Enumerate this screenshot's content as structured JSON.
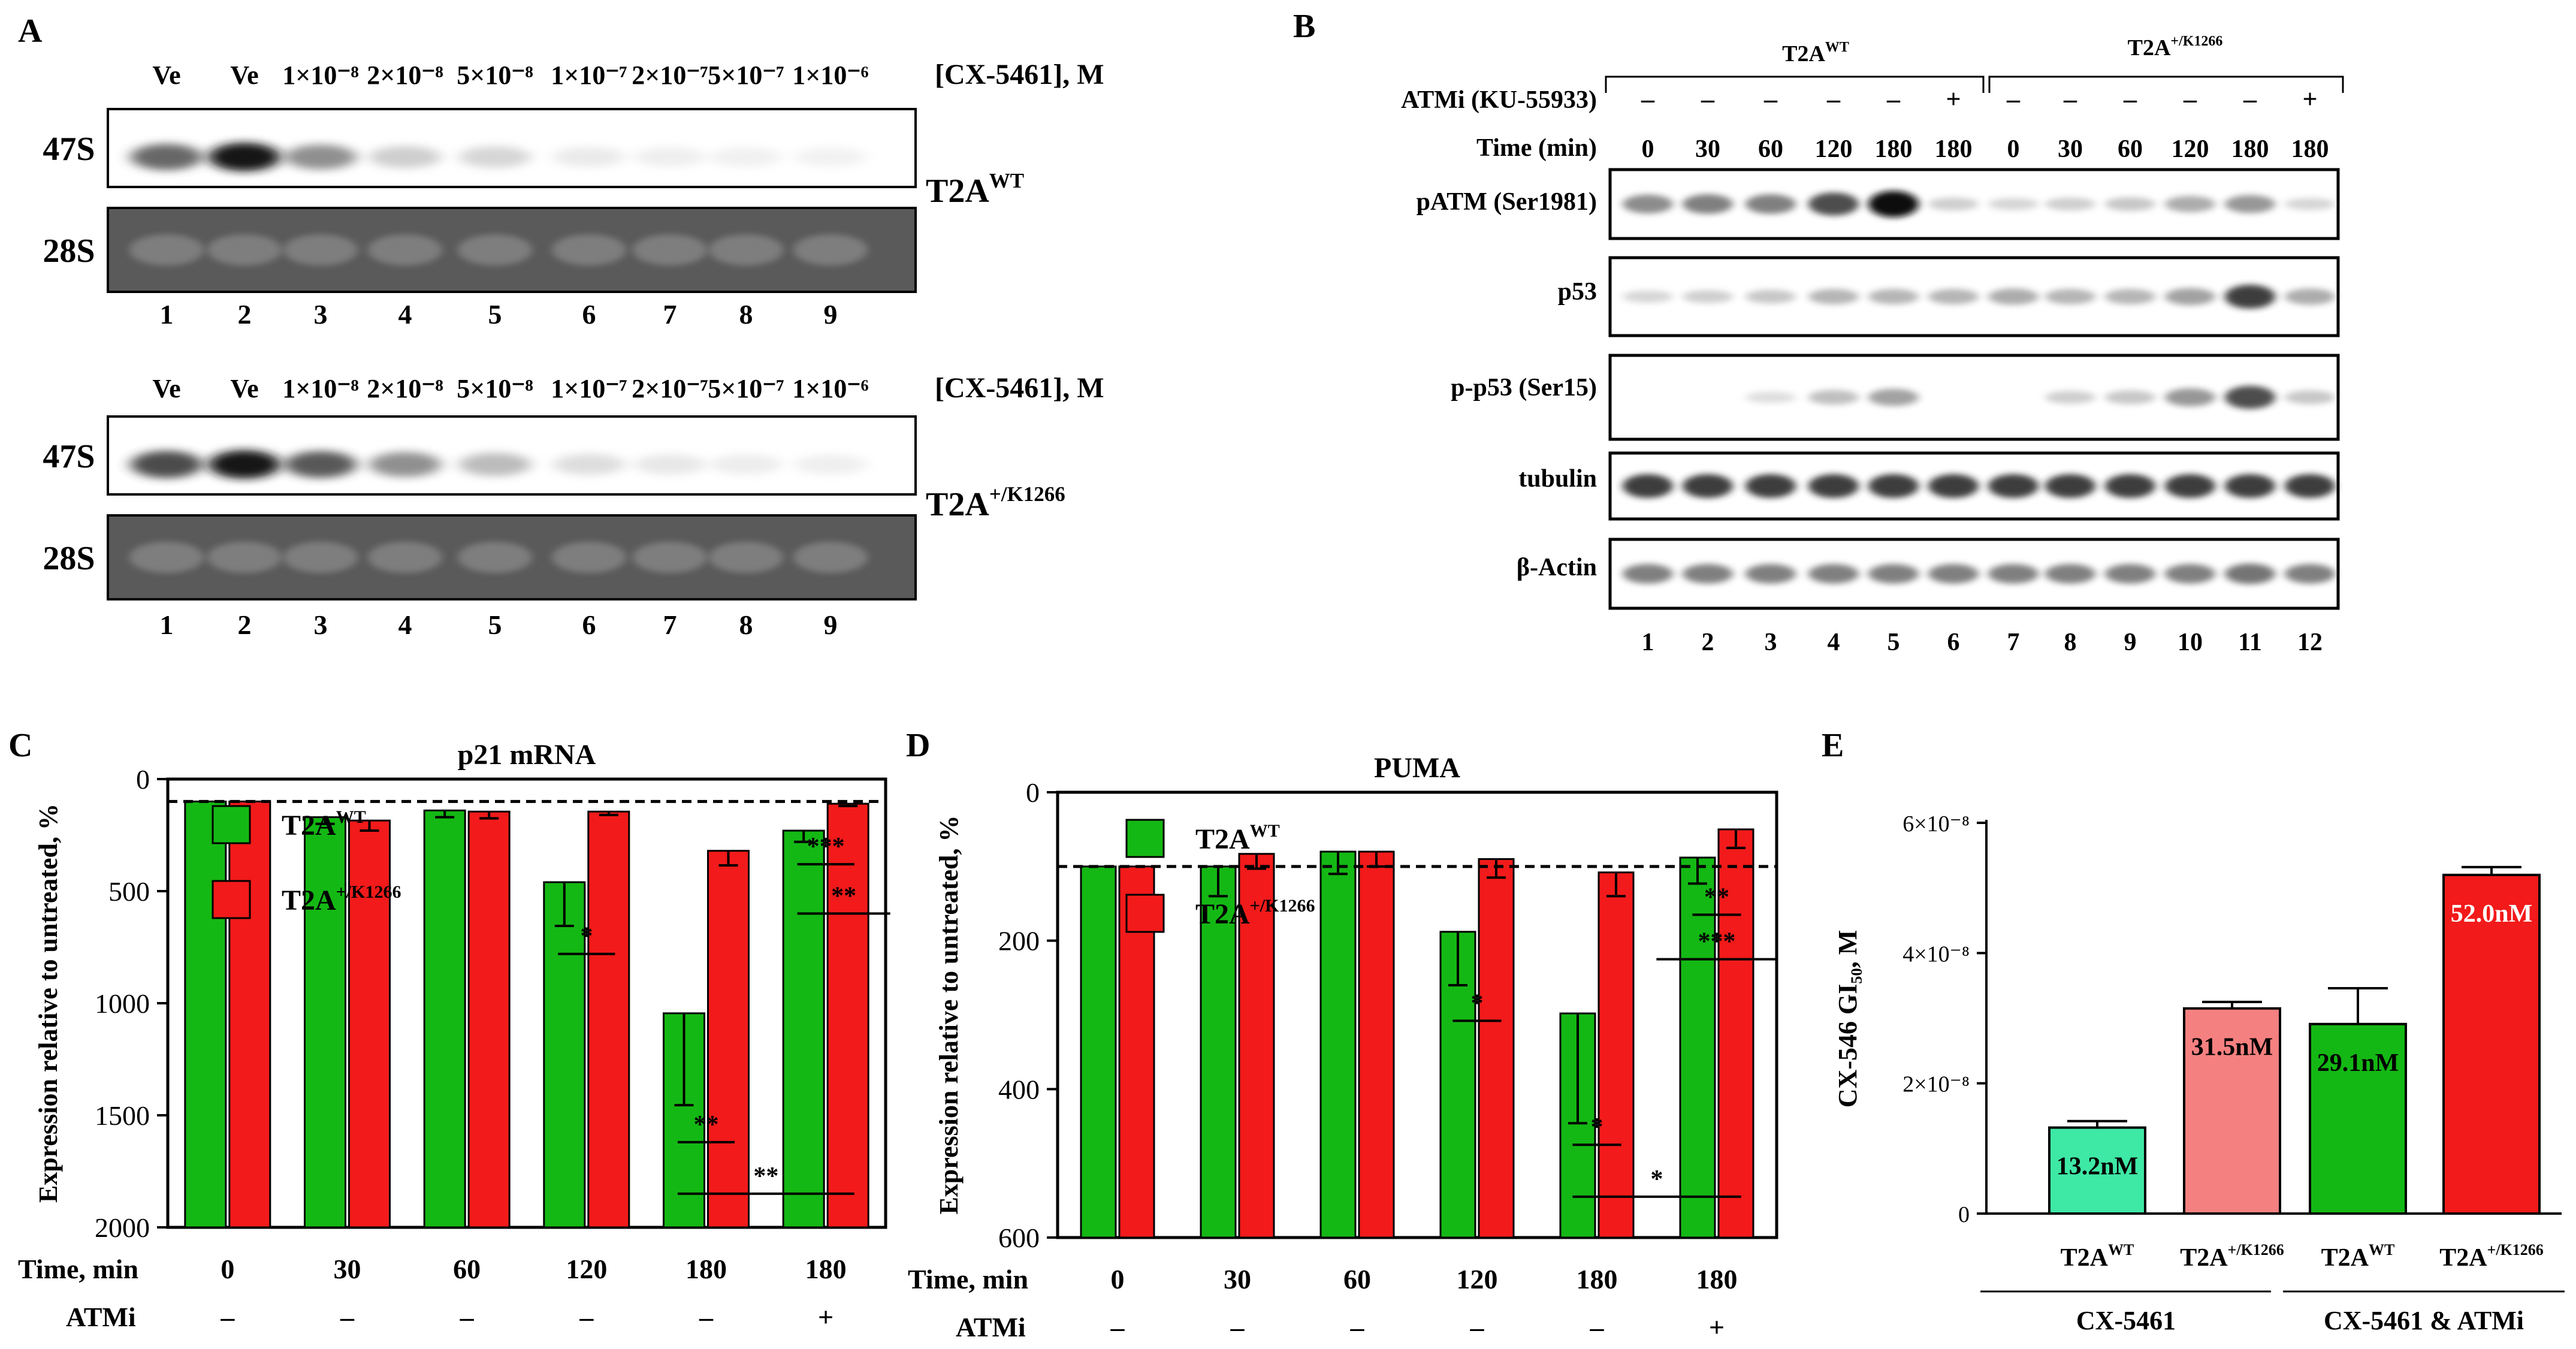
{
  "panels": {
    "A": {
      "label": "A",
      "conc_header": "[CX-5461], M",
      "lane_labels": [
        "Ve",
        "Ve",
        "1×10⁻⁸",
        "2×10⁻⁸",
        "5×10⁻⁸",
        "1×10⁻⁷",
        "2×10⁻⁷",
        "5×10⁻⁷",
        "1×10⁻⁶"
      ],
      "lane_numbers": [
        "1",
        "2",
        "3",
        "4",
        "5",
        "6",
        "7",
        "8",
        "9"
      ],
      "row_47s": "47S",
      "row_28s": "28S",
      "blots": [
        {
          "cell_line": "T2A",
          "superscript": "WT",
          "intensities_47s": [
            0.75,
            1.0,
            0.6,
            0.3,
            0.25,
            0.1,
            0.06,
            0.04,
            0.03
          ]
        },
        {
          "cell_line": "T2A",
          "superscript": "+/K1266",
          "intensities_47s": [
            0.85,
            1.0,
            0.8,
            0.6,
            0.4,
            0.2,
            0.12,
            0.08,
            0.06
          ]
        }
      ]
    },
    "B": {
      "label": "B",
      "groups": [
        {
          "name": "T2A",
          "superscript": "WT"
        },
        {
          "name": "T2A",
          "superscript": "+/K1266"
        }
      ],
      "atmi_label": "ATMi (KU-55933)",
      "atmi_values": [
        "–",
        "–",
        "–",
        "–",
        "–",
        "+",
        "–",
        "–",
        "–",
        "–",
        "–",
        "+"
      ],
      "time_label": "Time (min)",
      "times": [
        "0",
        "30",
        "60",
        "120",
        "180",
        "180",
        "0",
        "30",
        "60",
        "120",
        "180",
        "180"
      ],
      "lane_numbers": [
        "1",
        "2",
        "3",
        "4",
        "5",
        "6",
        "7",
        "8",
        "9",
        "10",
        "11",
        "12"
      ],
      "rows": [
        {
          "label": "pATM (Ser1981)",
          "intensities": [
            0.55,
            0.6,
            0.6,
            0.8,
            1.0,
            0.2,
            0.15,
            0.2,
            0.25,
            0.4,
            0.5,
            0.15
          ]
        },
        {
          "label": "p53",
          "intensities": [
            0.15,
            0.2,
            0.25,
            0.35,
            0.35,
            0.35,
            0.4,
            0.35,
            0.35,
            0.45,
            0.85,
            0.4
          ]
        },
        {
          "label": "p-p53 (Ser15)",
          "intensities": [
            0.0,
            0.0,
            0.1,
            0.3,
            0.45,
            0.0,
            0.0,
            0.2,
            0.25,
            0.5,
            0.8,
            0.25
          ]
        },
        {
          "label": "tubulin",
          "intensities": [
            0.85,
            0.85,
            0.85,
            0.85,
            0.85,
            0.85,
            0.85,
            0.85,
            0.85,
            0.85,
            0.85,
            0.85
          ]
        },
        {
          "label": "β-Actin",
          "intensities": [
            0.6,
            0.6,
            0.6,
            0.6,
            0.6,
            0.6,
            0.6,
            0.6,
            0.6,
            0.6,
            0.65,
            0.6
          ]
        }
      ]
    }
  },
  "chart_data": [
    {
      "id": "C",
      "panel_label": "C",
      "type": "bar",
      "title": "p21 mRNA",
      "ylabel": "Expression relative to untreated, %",
      "ylim": [
        0,
        2000
      ],
      "yticks": [
        "0",
        "500",
        "1000",
        "1500",
        "2000"
      ],
      "baseline": 100,
      "categories": [
        "0",
        "30",
        "60",
        "120",
        "180",
        "180"
      ],
      "row_labels": {
        "time": "Time, min",
        "atmi": "ATMi"
      },
      "atmi": [
        "–",
        "–",
        "–",
        "–",
        "–",
        "+"
      ],
      "series": [
        {
          "name": "T2A",
          "superscript": "WT",
          "color": "#14b814",
          "values": [
            100,
            170,
            140,
            460,
            1045,
            230
          ],
          "errors": [
            0,
            30,
            30,
            195,
            410,
            50
          ]
        },
        {
          "name": "T2A",
          "superscript": "+/K1266",
          "color": "#f21a1a",
          "values": [
            100,
            185,
            145,
            145,
            320,
            110
          ],
          "errors": [
            0,
            45,
            30,
            15,
            65,
            10
          ]
        }
      ],
      "significance": [
        {
          "label": "*",
          "x1": 3,
          "x2": 3,
          "y": 780
        },
        {
          "label": "**",
          "x1": 4,
          "x2": 4,
          "y": 1620
        },
        {
          "label": "**",
          "x1": 4,
          "x2": 5,
          "y": 1850
        },
        {
          "label": "**",
          "x1": 5,
          "x2": 5.3,
          "y": 600
        },
        {
          "label": "***",
          "x1": 5,
          "x2": 5,
          "y": 380
        }
      ]
    },
    {
      "id": "D",
      "panel_label": "D",
      "type": "bar",
      "title": "PUMA",
      "ylabel": "Expression relative to untreated, %",
      "ylim": [
        0,
        600
      ],
      "yticks": [
        "0",
        "200",
        "400",
        "600"
      ],
      "baseline": 100,
      "categories": [
        "0",
        "30",
        "60",
        "120",
        "180",
        "180"
      ],
      "row_labels": {
        "time": "Time, min",
        "atmi": "ATMi"
      },
      "atmi": [
        "–",
        "–",
        "–",
        "–",
        "–",
        "+"
      ],
      "series": [
        {
          "name": "T2A",
          "superscript": "WT",
          "color": "#14b814",
          "values": [
            100,
            100,
            80,
            188,
            298,
            88
          ],
          "errors": [
            0,
            40,
            30,
            72,
            148,
            35
          ]
        },
        {
          "name": "T2A",
          "superscript": "+/K1266",
          "color": "#f21a1a",
          "values": [
            100,
            83,
            80,
            90,
            108,
            50
          ],
          "errors": [
            0,
            20,
            20,
            25,
            32,
            25
          ]
        }
      ],
      "significance": [
        {
          "label": "*",
          "x1": 3,
          "x2": 3,
          "y": 308
        },
        {
          "label": "*",
          "x1": 4,
          "x2": 4,
          "y": 475
        },
        {
          "label": "*",
          "x1": 4,
          "x2": 5,
          "y": 545
        },
        {
          "label": "***",
          "x1": 4.7,
          "x2": 5.3,
          "y": 225
        },
        {
          "label": "**",
          "x1": 5,
          "x2": 5,
          "y": 165
        }
      ]
    },
    {
      "id": "E",
      "panel_label": "E",
      "type": "bar",
      "ylabel": "CX-546 GI₅₀, M",
      "ylim": [
        0,
        6e-08
      ],
      "yticks": [
        "0",
        "2×10⁻⁸",
        "4×10⁻⁸",
        "6×10⁻⁸"
      ],
      "categories": [
        {
          "name": "T2A",
          "superscript": "WT"
        },
        {
          "name": "T2A",
          "superscript": "+/K1266"
        },
        {
          "name": "T2A",
          "superscript": "WT"
        },
        {
          "name": "T2A",
          "superscript": "+/K1266"
        }
      ],
      "values": [
        1.32e-08,
        3.15e-08,
        2.91e-08,
        5.2e-08
      ],
      "errors": [
        1e-09,
        1e-09,
        5.5e-09,
        1.2e-09
      ],
      "bar_labels": [
        "13.2nM",
        "31.5nM",
        "29.1nM",
        "52.0nM"
      ],
      "colors": [
        "#3ee8a5",
        "#f58080",
        "#14b814",
        "#f21a1a"
      ],
      "label_colors": [
        "#000000",
        "#000000",
        "#000000",
        "#ffffff"
      ],
      "groups": [
        "CX-5461",
        "CX-5461 & ATMi"
      ]
    }
  ]
}
